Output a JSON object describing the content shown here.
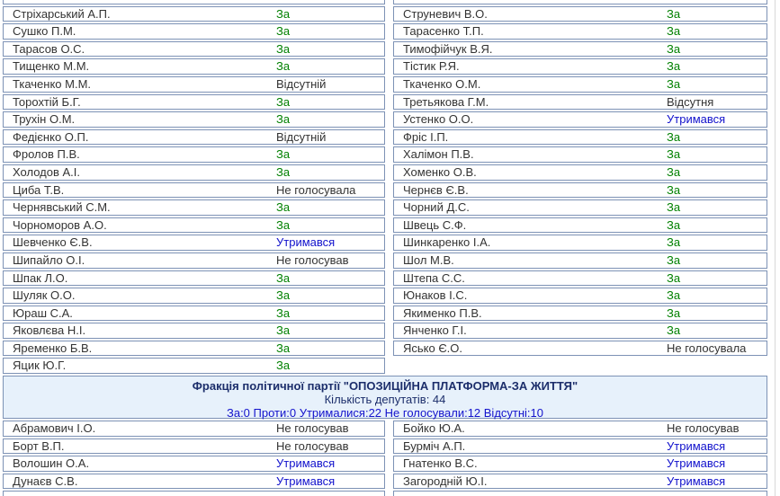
{
  "colors": {
    "border": "#7d92b5",
    "vote_for": "#008000",
    "vote_abstained": "#1111cc",
    "vote_neutral": "#333333",
    "divider_bg": "#e7f1fb",
    "divider_title": "#1c2e6b",
    "totals_blue": "#1414cc",
    "name_color": "#333333",
    "edge_line": "#d8d8d8"
  },
  "divider": {
    "faction_title": "Фракція політичної партії \"ОПОЗИЦІЙНА ПЛАТФОРМА-ЗА ЖИТТЯ\"",
    "deputies_count_label": "Кількість депутатів: 44",
    "totals_label": "За:0 Проти:0 Утрималися:22 Не голосували:12 Відсутні:10"
  },
  "tables": {
    "top_left": [
      {
        "name": "Стріхарський А.П.",
        "vote": "За",
        "type": "for"
      },
      {
        "name": "Сушко П.М.",
        "vote": "За",
        "type": "for"
      },
      {
        "name": "Тарасов О.С.",
        "vote": "За",
        "type": "for"
      },
      {
        "name": "Тищенко М.М.",
        "vote": "За",
        "type": "for"
      },
      {
        "name": "Ткаченко М.М.",
        "vote": "Відсутній",
        "type": "neutral"
      },
      {
        "name": "Торохтій Б.Г.",
        "vote": "За",
        "type": "for"
      },
      {
        "name": "Трухін О.М.",
        "vote": "За",
        "type": "for"
      },
      {
        "name": "Федієнко О.П.",
        "vote": "Відсутній",
        "type": "neutral"
      },
      {
        "name": "Фролов П.В.",
        "vote": "За",
        "type": "for"
      },
      {
        "name": "Холодов А.І.",
        "vote": "За",
        "type": "for"
      },
      {
        "name": "Циба Т.В.",
        "vote": "Не голосувала",
        "type": "neutral"
      },
      {
        "name": "Чернявський С.М.",
        "vote": "За",
        "type": "for"
      },
      {
        "name": "Чорноморов А.О.",
        "vote": "За",
        "type": "for"
      },
      {
        "name": "Шевченко Є.В.",
        "vote": "Утримався",
        "type": "abstained"
      },
      {
        "name": "Шипайло О.І.",
        "vote": "Не голосував",
        "type": "neutral"
      },
      {
        "name": "Шпак Л.О.",
        "vote": "За",
        "type": "for"
      },
      {
        "name": "Шуляк О.О.",
        "vote": "За",
        "type": "for"
      },
      {
        "name": "Юраш С.А.",
        "vote": "За",
        "type": "for"
      },
      {
        "name": "Яковлєва Н.І.",
        "vote": "За",
        "type": "for"
      },
      {
        "name": "Яременко Б.В.",
        "vote": "За",
        "type": "for"
      },
      {
        "name": "Яцик Ю.Г.",
        "vote": "За",
        "type": "for"
      }
    ],
    "top_right": [
      {
        "name": "Струневич В.О.",
        "vote": "За",
        "type": "for"
      },
      {
        "name": "Тарасенко Т.П.",
        "vote": "За",
        "type": "for"
      },
      {
        "name": "Тимофійчук В.Я.",
        "vote": "За",
        "type": "for"
      },
      {
        "name": "Тістик Р.Я.",
        "vote": "За",
        "type": "for"
      },
      {
        "name": "Ткаченко О.М.",
        "vote": "За",
        "type": "for"
      },
      {
        "name": "Третьякова Г.М.",
        "vote": "Відсутня",
        "type": "neutral"
      },
      {
        "name": "Устенко О.О.",
        "vote": "Утримався",
        "type": "abstained"
      },
      {
        "name": "Фріс І.П.",
        "vote": "За",
        "type": "for"
      },
      {
        "name": "Халімон П.В.",
        "vote": "За",
        "type": "for"
      },
      {
        "name": "Хоменко О.В.",
        "vote": "За",
        "type": "for"
      },
      {
        "name": "Чернєв Є.В.",
        "vote": "За",
        "type": "for"
      },
      {
        "name": "Чорний Д.С.",
        "vote": "За",
        "type": "for"
      },
      {
        "name": "Швець С.Ф.",
        "vote": "За",
        "type": "for"
      },
      {
        "name": "Шинкаренко І.А.",
        "vote": "За",
        "type": "for"
      },
      {
        "name": "Шол М.В.",
        "vote": "За",
        "type": "for"
      },
      {
        "name": "Штепа С.С.",
        "vote": "За",
        "type": "for"
      },
      {
        "name": "Юнаков І.С.",
        "vote": "За",
        "type": "for"
      },
      {
        "name": "Якименко П.В.",
        "vote": "За",
        "type": "for"
      },
      {
        "name": "Янченко Г.І.",
        "vote": "За",
        "type": "for"
      },
      {
        "name": "Ясько Є.О.",
        "vote": "Не голосувала",
        "type": "neutral"
      }
    ],
    "bottom_left": [
      {
        "name": "Абрамович І.О.",
        "vote": "Не голосував",
        "type": "neutral"
      },
      {
        "name": "Борт В.П.",
        "vote": "Не голосував",
        "type": "neutral"
      },
      {
        "name": "Волошин О.А.",
        "vote": "Утримався",
        "type": "abstained"
      },
      {
        "name": "Дунаєв С.В.",
        "vote": "Утримався",
        "type": "abstained"
      }
    ],
    "bottom_right": [
      {
        "name": "Бойко Ю.А.",
        "vote": "Не голосував",
        "type": "neutral"
      },
      {
        "name": "Бурміч А.П.",
        "vote": "Утримався",
        "type": "abstained"
      },
      {
        "name": "Гнатенко В.С.",
        "vote": "Утримався",
        "type": "abstained"
      },
      {
        "name": "Загородній Ю.І.",
        "vote": "Утримався",
        "type": "abstained"
      }
    ]
  }
}
